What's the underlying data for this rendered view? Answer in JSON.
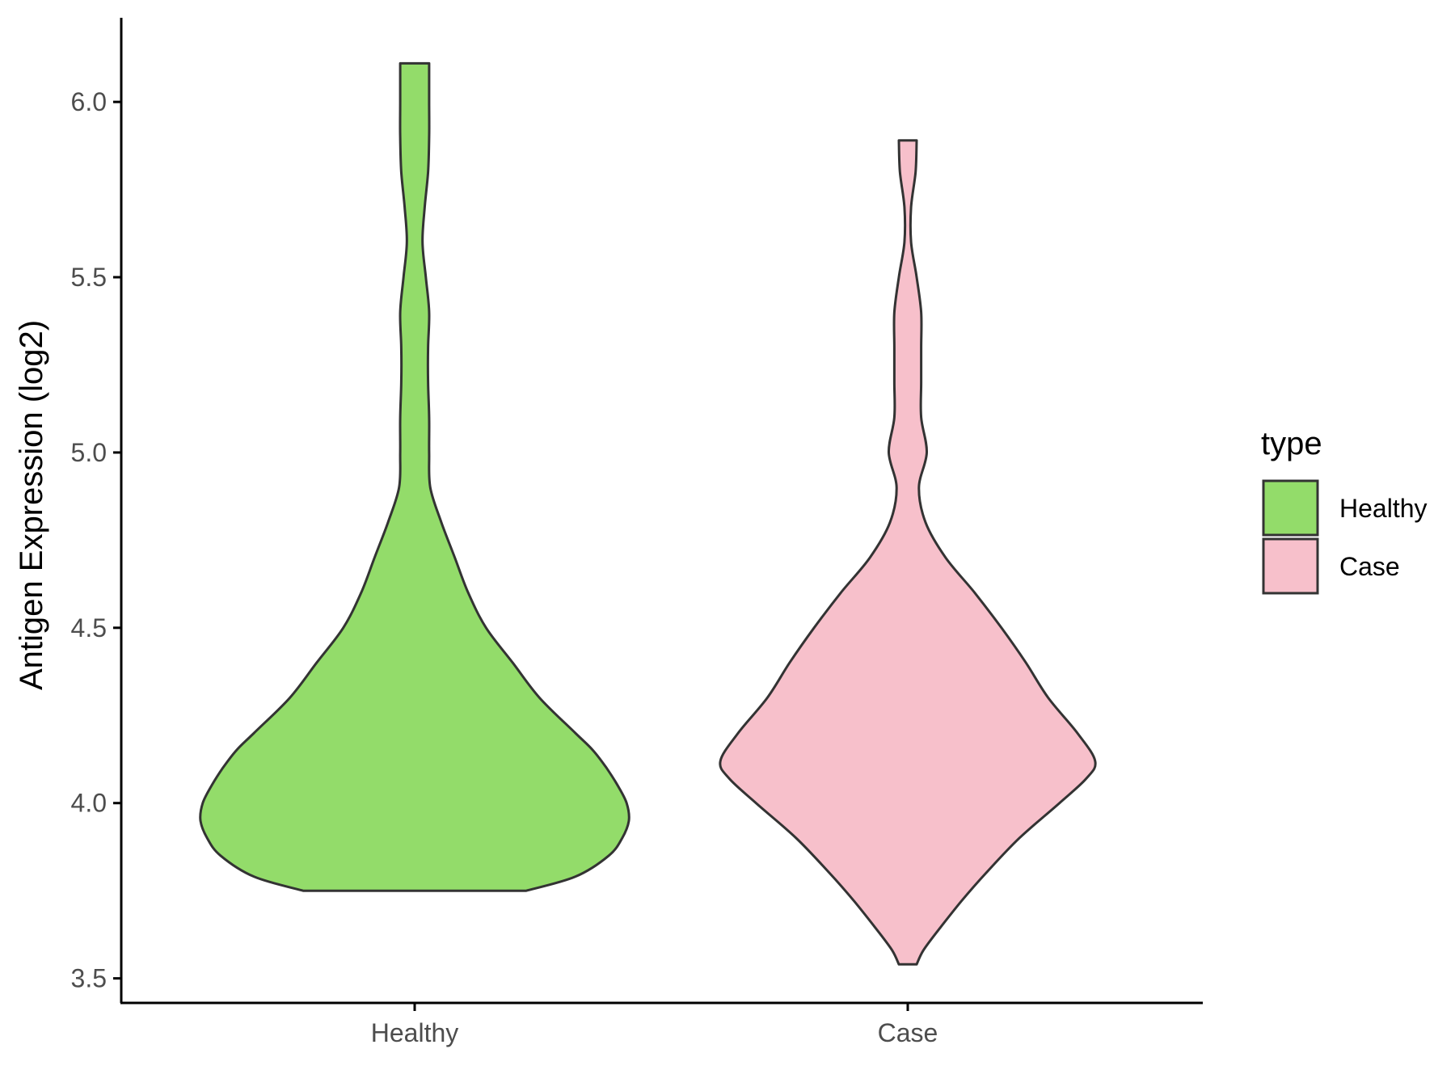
{
  "chart_data": {
    "type": "violin",
    "title": "",
    "xlabel": "",
    "ylabel": "Antigen Expression (log2)",
    "ylim": [
      3.43,
      6.24
    ],
    "yticks": [
      "3.5",
      "4.0",
      "4.5",
      "5.0",
      "5.5",
      "6.0"
    ],
    "categories": [
      "Healthy",
      "Case"
    ],
    "grid": false,
    "legend": {
      "title": "type",
      "position": "right",
      "entries": [
        "Healthy",
        "Case"
      ]
    },
    "colors": {
      "Healthy": "#93dc6a",
      "Case": "#f7c0cb",
      "outline": "#333333",
      "axis": "#000000"
    },
    "series": [
      {
        "name": "Healthy",
        "density": [
          [
            3.75,
            0.5
          ],
          [
            3.79,
            0.72
          ],
          [
            3.85,
            0.87
          ],
          [
            3.9,
            0.93
          ],
          [
            3.95,
            0.96
          ],
          [
            4.0,
            0.95
          ],
          [
            4.05,
            0.91
          ],
          [
            4.1,
            0.86
          ],
          [
            4.15,
            0.8
          ],
          [
            4.2,
            0.72
          ],
          [
            4.3,
            0.56
          ],
          [
            4.4,
            0.44
          ],
          [
            4.5,
            0.32
          ],
          [
            4.6,
            0.24
          ],
          [
            4.7,
            0.18
          ],
          [
            4.8,
            0.12
          ],
          [
            4.9,
            0.07
          ],
          [
            5.0,
            0.065
          ],
          [
            5.1,
            0.065
          ],
          [
            5.2,
            0.06
          ],
          [
            5.3,
            0.06
          ],
          [
            5.4,
            0.065
          ],
          [
            5.5,
            0.05
          ],
          [
            5.6,
            0.035
          ],
          [
            5.7,
            0.045
          ],
          [
            5.8,
            0.06
          ],
          [
            5.9,
            0.065
          ],
          [
            6.0,
            0.065
          ],
          [
            6.11,
            0.065
          ]
        ]
      },
      {
        "name": "Case",
        "density": [
          [
            3.54,
            0.04
          ],
          [
            3.58,
            0.07
          ],
          [
            3.64,
            0.14
          ],
          [
            3.72,
            0.24
          ],
          [
            3.8,
            0.35
          ],
          [
            3.9,
            0.5
          ],
          [
            4.0,
            0.68
          ],
          [
            4.07,
            0.8
          ],
          [
            4.12,
            0.84
          ],
          [
            4.2,
            0.76
          ],
          [
            4.3,
            0.63
          ],
          [
            4.4,
            0.53
          ],
          [
            4.5,
            0.42
          ],
          [
            4.6,
            0.3
          ],
          [
            4.7,
            0.17
          ],
          [
            4.8,
            0.08
          ],
          [
            4.9,
            0.05
          ],
          [
            5.0,
            0.085
          ],
          [
            5.1,
            0.06
          ],
          [
            5.2,
            0.06
          ],
          [
            5.3,
            0.06
          ],
          [
            5.4,
            0.06
          ],
          [
            5.5,
            0.04
          ],
          [
            5.6,
            0.015
          ],
          [
            5.7,
            0.015
          ],
          [
            5.8,
            0.035
          ],
          [
            5.89,
            0.04
          ]
        ]
      }
    ]
  }
}
